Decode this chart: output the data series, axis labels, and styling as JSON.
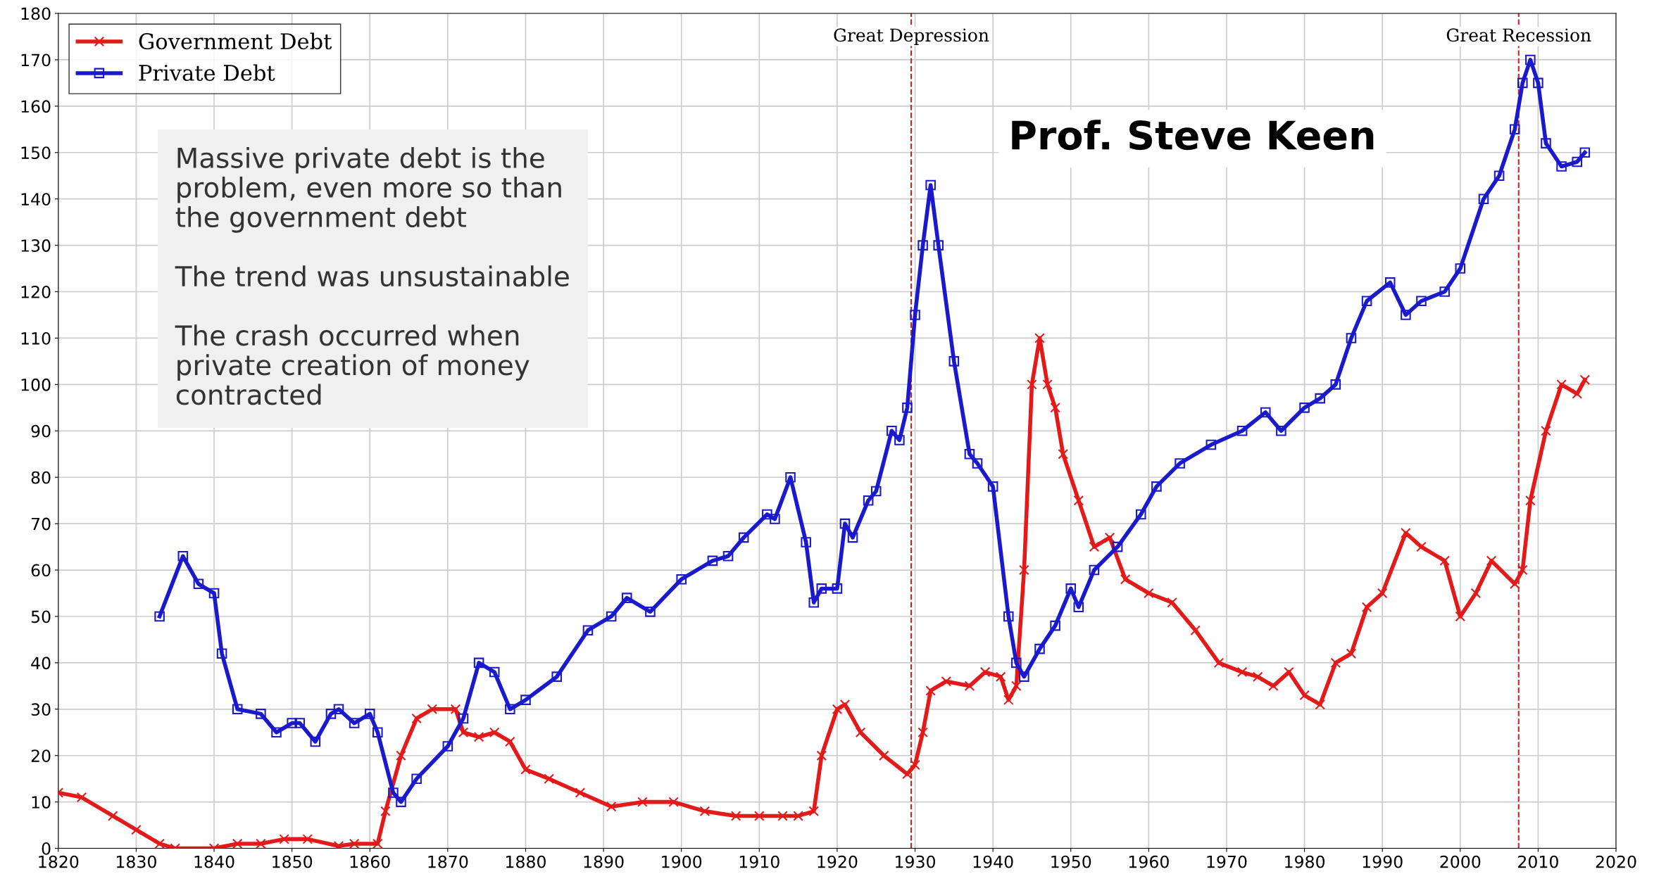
{
  "chart_data": {
    "type": "line",
    "xlim": [
      1820,
      2020
    ],
    "ylim": [
      0,
      180
    ],
    "xticks": [
      1820,
      1830,
      1840,
      1850,
      1860,
      1870,
      1880,
      1890,
      1900,
      1910,
      1920,
      1930,
      1940,
      1950,
      1960,
      1970,
      1980,
      1990,
      2000,
      2010,
      2020
    ],
    "yticks": [
      0,
      10,
      20,
      30,
      40,
      50,
      60,
      70,
      80,
      90,
      100,
      110,
      120,
      130,
      140,
      150,
      160,
      170,
      180
    ],
    "grid": true,
    "legend": "top left",
    "line_style": "solid",
    "series": [
      {
        "name": "Government Debt",
        "color": "#e41a1a",
        "marker": "cross",
        "x": [
          1820,
          1823,
          1827,
          1830,
          1833,
          1835,
          1840,
          1843,
          1846,
          1849,
          1852,
          1856,
          1858,
          1861,
          1862,
          1864,
          1866,
          1868,
          1871,
          1872,
          1874,
          1876,
          1878,
          1880,
          1883,
          1887,
          1891,
          1895,
          1899,
          1903,
          1907,
          1910,
          1913,
          1915,
          1917,
          1918,
          1920,
          1921,
          1923,
          1926,
          1929,
          1930,
          1931,
          1932,
          1934,
          1937,
          1939,
          1941,
          1942,
          1943,
          1944,
          1945,
          1946,
          1947,
          1948,
          1949,
          1951,
          1953,
          1955,
          1957,
          1960,
          1963,
          1966,
          1969,
          1972,
          1974,
          1976,
          1978,
          1980,
          1982,
          1984,
          1986,
          1988,
          1990,
          1993,
          1995,
          1998,
          2000,
          2002,
          2004,
          2007,
          2008,
          2009,
          2011,
          2013,
          2015,
          2016
        ],
        "values": [
          12,
          11,
          7,
          4,
          1,
          0,
          0,
          1,
          1,
          2,
          2,
          0.5,
          1,
          1,
          8,
          20,
          28,
          30,
          30,
          25,
          24,
          25,
          23,
          17,
          15,
          12,
          9,
          10,
          10,
          8,
          7,
          7,
          7,
          7,
          8,
          20,
          30,
          31,
          25,
          20,
          16,
          18,
          25,
          34,
          36,
          35,
          38,
          37,
          32,
          35,
          60,
          100,
          110,
          100,
          95,
          85,
          75,
          65,
          67,
          58,
          55,
          53,
          47,
          40,
          38,
          37,
          35,
          38,
          33,
          31,
          40,
          42,
          52,
          55,
          68,
          65,
          62,
          50,
          55,
          62,
          57,
          60,
          75,
          90,
          100,
          98,
          101
        ]
      },
      {
        "name": "Private Debt",
        "color": "#1a1acc",
        "marker": "square",
        "x": [
          1833,
          1836,
          1838,
          1840,
          1841,
          1843,
          1846,
          1848,
          1850,
          1851,
          1853,
          1855,
          1856,
          1858,
          1860,
          1861,
          1863,
          1864,
          1866,
          1870,
          1872,
          1874,
          1876,
          1878,
          1880,
          1884,
          1888,
          1891,
          1893,
          1896,
          1900,
          1904,
          1906,
          1908,
          1911,
          1912,
          1914,
          1916,
          1917,
          1918,
          1920,
          1921,
          1922,
          1924,
          1925,
          1927,
          1928,
          1929,
          1930,
          1931,
          1932,
          1933,
          1935,
          1937,
          1938,
          1940,
          1942,
          1943,
          1944,
          1946,
          1948,
          1950,
          1951,
          1953,
          1956,
          1959,
          1961,
          1964,
          1968,
          1972,
          1975,
          1977,
          1980,
          1982,
          1984,
          1986,
          1988,
          1991,
          1993,
          1995,
          1998,
          2000,
          2003,
          2005,
          2007,
          2008,
          2009,
          2010,
          2011,
          2013,
          2015,
          2016
        ],
        "values": [
          50,
          63,
          57,
          55,
          42,
          30,
          29,
          25,
          27,
          27,
          23,
          29,
          30,
          27,
          29,
          25,
          12,
          10,
          15,
          22,
          28,
          40,
          38,
          30,
          32,
          37,
          47,
          50,
          54,
          51,
          58,
          62,
          63,
          67,
          72,
          71,
          80,
          66,
          53,
          56,
          56,
          70,
          67,
          75,
          77,
          90,
          88,
          95,
          115,
          130,
          143,
          130,
          105,
          85,
          83,
          78,
          50,
          40,
          37,
          43,
          48,
          56,
          52,
          60,
          65,
          72,
          78,
          83,
          87,
          90,
          94,
          90,
          95,
          97,
          100,
          110,
          118,
          122,
          115,
          118,
          120,
          125,
          140,
          145,
          155,
          165,
          170,
          165,
          152,
          147,
          148,
          150
        ]
      }
    ],
    "ref_lines": [
      {
        "axis": "x",
        "value": 1929.5,
        "label": "Great Depression",
        "color": "#cc2222",
        "line_style": "dashed"
      },
      {
        "axis": "x",
        "value": 2007.5,
        "label": "Great Recession",
        "color": "#cc2222",
        "line_style": "dashed"
      }
    ],
    "annotations": [
      "Massive private debt is the\nproblem, even more so than\nthe government debt\n\nThe trend was unsustainable\n\nThe crash occurred when\nprivate creation of money\ncontracted",
      "Prof. Steve Keen"
    ]
  }
}
